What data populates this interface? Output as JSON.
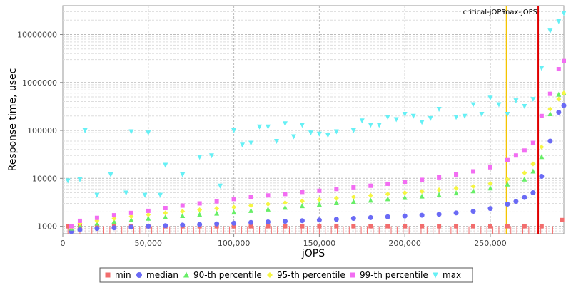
{
  "chart_data": {
    "type": "scatter",
    "xlabel": "jOPS",
    "ylabel": "Response time, usec",
    "xlim": [
      0,
      293000
    ],
    "ylim": [
      700,
      40000000
    ],
    "y_scale": "log",
    "grid": true,
    "x_ticks": [
      {
        "value": 0,
        "label": "0"
      },
      {
        "value": 50000,
        "label": "50,000"
      },
      {
        "value": 100000,
        "label": "100,000"
      },
      {
        "value": 150000,
        "label": "150,000"
      },
      {
        "value": 200000,
        "label": "200,000"
      },
      {
        "value": 250000,
        "label": "250,000"
      }
    ],
    "y_ticks": [
      {
        "value": 1000,
        "label": "1000"
      },
      {
        "value": 10000,
        "label": "10000"
      },
      {
        "value": 100000,
        "label": "100000"
      },
      {
        "value": 1000000,
        "label": "1000000"
      },
      {
        "value": 10000000,
        "label": "10000000"
      }
    ],
    "vlines": [
      {
        "x": 259500,
        "label": "critical-jOPS",
        "color": "#f5c400"
      },
      {
        "x": 278000,
        "label": "max-jOPS",
        "color": "#e00000"
      }
    ],
    "legend_position": "bottom",
    "series": [
      {
        "name": "min",
        "marker": "square",
        "color": "#f26d6d",
        "x": [
          3000,
          10000,
          20000,
          30000,
          40000,
          50000,
          60000,
          70000,
          80000,
          90000,
          100000,
          110000,
          120000,
          130000,
          140000,
          150000,
          160000,
          170000,
          180000,
          190000,
          200000,
          210000,
          220000,
          230000,
          240000,
          250000,
          260000,
          270000,
          280000,
          292000
        ],
        "y": [
          1000,
          1000,
          1000,
          1000,
          1000,
          1000,
          1000,
          1000,
          1000,
          1000,
          1000,
          1000,
          1000,
          1000,
          1000,
          1000,
          1000,
          1000,
          1000,
          1000,
          1000,
          1000,
          1000,
          1000,
          1000,
          1000,
          1000,
          1000,
          1000,
          1350
        ]
      },
      {
        "name": "median",
        "marker": "circle",
        "color": "#6a6af5",
        "x": [
          5000,
          10000,
          20000,
          30000,
          40000,
          50000,
          60000,
          70000,
          80000,
          90000,
          100000,
          110000,
          120000,
          130000,
          140000,
          150000,
          160000,
          170000,
          180000,
          190000,
          200000,
          210000,
          220000,
          230000,
          240000,
          250000,
          260000,
          265000,
          270000,
          275000,
          280000,
          285000,
          290000,
          293000
        ],
        "y": [
          780,
          850,
          900,
          930,
          960,
          1000,
          1030,
          1060,
          1090,
          1120,
          1160,
          1200,
          1230,
          1270,
          1310,
          1350,
          1400,
          1460,
          1520,
          1580,
          1640,
          1700,
          1780,
          1900,
          2050,
          2350,
          2900,
          3300,
          4000,
          5000,
          11000,
          60000,
          240000,
          330000
        ]
      },
      {
        "name": "90-th percentile",
        "marker": "triangle-up",
        "color": "#66ee66",
        "x": [
          5000,
          10000,
          20000,
          30000,
          40000,
          50000,
          60000,
          70000,
          80000,
          90000,
          100000,
          110000,
          120000,
          130000,
          140000,
          150000,
          160000,
          170000,
          180000,
          190000,
          200000,
          210000,
          220000,
          230000,
          240000,
          250000,
          260000,
          270000,
          275000,
          280000,
          285000,
          290000,
          293000
        ],
        "y": [
          900,
          1050,
          1150,
          1250,
          1350,
          1450,
          1550,
          1650,
          1750,
          1850,
          1950,
          2100,
          2250,
          2450,
          2650,
          2850,
          3050,
          3250,
          3450,
          3700,
          3950,
          4200,
          4500,
          4900,
          5400,
          6200,
          7500,
          9500,
          14000,
          28000,
          220000,
          560000,
          600000
        ]
      },
      {
        "name": "95-th percentile",
        "marker": "diamond",
        "color": "#f5f542",
        "x": [
          5000,
          10000,
          20000,
          30000,
          40000,
          50000,
          60000,
          70000,
          80000,
          90000,
          100000,
          110000,
          120000,
          130000,
          140000,
          150000,
          160000,
          170000,
          180000,
          190000,
          200000,
          210000,
          220000,
          230000,
          240000,
          250000,
          260000,
          270000,
          275000,
          280000,
          285000,
          290000,
          293000
        ],
        "y": [
          950,
          1150,
          1300,
          1450,
          1600,
          1750,
          1900,
          2050,
          2200,
          2350,
          2500,
          2700,
          2900,
          3100,
          3350,
          3600,
          3850,
          4100,
          4400,
          4700,
          5000,
          5350,
          5750,
          6200,
          6800,
          7800,
          9500,
          13000,
          20000,
          45000,
          280000,
          450000,
          600000
        ]
      },
      {
        "name": "99-th percentile",
        "marker": "square",
        "color": "#f26df2",
        "x": [
          5000,
          10000,
          20000,
          30000,
          40000,
          50000,
          60000,
          70000,
          80000,
          90000,
          100000,
          110000,
          120000,
          130000,
          140000,
          150000,
          160000,
          170000,
          180000,
          190000,
          200000,
          210000,
          220000,
          230000,
          240000,
          250000,
          260000,
          265000,
          270000,
          275000,
          280000,
          285000,
          290000,
          293000
        ],
        "y": [
          1000,
          1300,
          1500,
          1700,
          1900,
          2100,
          2400,
          2700,
          3000,
          3300,
          3700,
          4100,
          4400,
          4700,
          5200,
          5500,
          6000,
          6500,
          7000,
          7700,
          8500,
          9300,
          10500,
          12000,
          14000,
          17000,
          24000,
          30000,
          38000,
          55000,
          200000,
          580000,
          1900000,
          2800000
        ]
      },
      {
        "name": "max",
        "marker": "triangle-down",
        "color": "#66f0f5",
        "x": [
          3000,
          10000,
          13000,
          20000,
          28000,
          37000,
          40000,
          48000,
          50000,
          57000,
          60000,
          70000,
          80000,
          87000,
          92000,
          100000,
          105000,
          110000,
          115000,
          120000,
          125000,
          130000,
          135000,
          140000,
          145000,
          150000,
          155000,
          160000,
          170000,
          175000,
          180000,
          185000,
          190000,
          195000,
          200000,
          205000,
          210000,
          215000,
          220000,
          230000,
          235000,
          240000,
          245000,
          250000,
          255000,
          260000,
          265000,
          270000,
          275000,
          280000,
          285000,
          290000,
          293000
        ],
        "y": [
          9000,
          9500,
          100000,
          4500,
          12000,
          5000,
          95000,
          4500,
          90000,
          4500,
          19000,
          12000,
          28000,
          30000,
          7000,
          100000,
          50000,
          55000,
          120000,
          120000,
          60000,
          140000,
          75000,
          130000,
          90000,
          85000,
          80000,
          95000,
          100000,
          160000,
          130000,
          130000,
          190000,
          170000,
          220000,
          200000,
          150000,
          180000,
          280000,
          190000,
          200000,
          350000,
          220000,
          480000,
          350000,
          220000,
          420000,
          320000,
          450000,
          2000000,
          12000000,
          19000000,
          28000000
        ]
      }
    ]
  }
}
